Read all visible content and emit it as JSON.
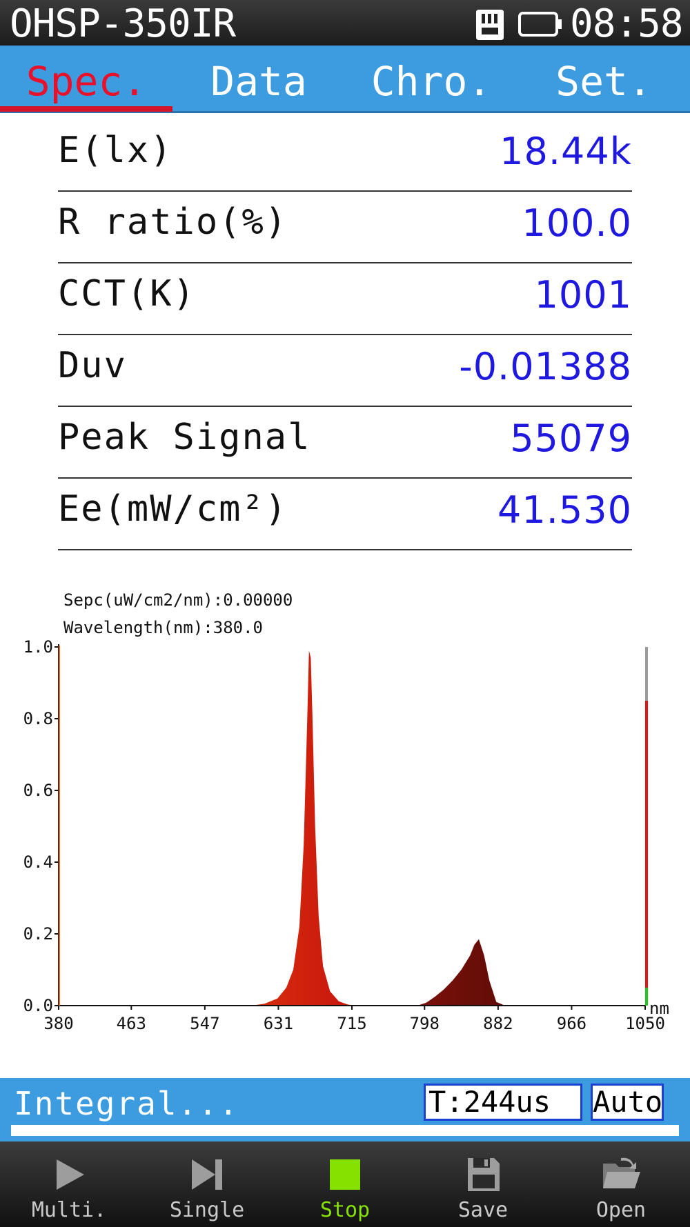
{
  "status_bar": {
    "model": "OHSP-350IR",
    "time": "08:58",
    "sd_icon": "sd-card-icon",
    "battery_icon": "battery-icon"
  },
  "tabs": [
    {
      "label": "Spec.",
      "active": true
    },
    {
      "label": "Data",
      "active": false
    },
    {
      "label": "Chro.",
      "active": false
    },
    {
      "label": "Set.",
      "active": false
    }
  ],
  "metrics": [
    {
      "label": "E(lx)",
      "value": "18.44k"
    },
    {
      "label": "R ratio(%)",
      "value": "100.0"
    },
    {
      "label": "CCT(K)",
      "value": "1001"
    },
    {
      "label": "Duv",
      "value": "-0.01388"
    },
    {
      "label": "Peak Signal",
      "value": "55079"
    },
    {
      "label": "Ee(mW/cm²)",
      "value": "41.530"
    }
  ],
  "cursor_readout": {
    "spec_line": "Sepc(uW/cm2/nm):0.00000",
    "wavelength_line": "Wavelength(nm):380.0"
  },
  "chart_data": {
    "type": "area",
    "xlabel": "nm",
    "ylabel": "",
    "xlim": [
      380,
      1050
    ],
    "ylim": [
      0,
      1.0
    ],
    "x_ticks": [
      "380",
      "463",
      "547",
      "631",
      "715",
      "798",
      "882",
      "966",
      "1050"
    ],
    "y_ticks": [
      "0.0",
      "0.2",
      "0.4",
      "0.6",
      "0.8",
      "1.0"
    ],
    "series": [
      {
        "x": [
          380,
          600,
          615,
          630,
          640,
          648,
          655,
          660,
          664,
          666,
          668,
          670,
          673,
          677,
          682,
          690,
          700,
          710,
          720,
          740
        ],
        "y": [
          0,
          0,
          0.005,
          0.02,
          0.05,
          0.1,
          0.22,
          0.45,
          0.8,
          0.99,
          0.97,
          0.8,
          0.5,
          0.25,
          0.11,
          0.04,
          0.012,
          0.003,
          0,
          0
        ]
      },
      {
        "x": [
          790,
          800,
          810,
          820,
          830,
          840,
          850,
          855,
          860,
          866,
          872,
          880,
          890,
          1050
        ],
        "y": [
          0,
          0.008,
          0.025,
          0.045,
          0.07,
          0.1,
          0.14,
          0.17,
          0.185,
          0.14,
          0.07,
          0.01,
          0,
          0
        ]
      }
    ],
    "grid": false,
    "signal_level_bar": {
      "level": 0.85,
      "colors": {
        "filled": "#e8141c",
        "empty": "#9a9a9a",
        "base": "#22c81e"
      }
    }
  },
  "integral": {
    "label": "Integral...",
    "time_value": "T:244us",
    "mode": "Auto",
    "progress": 1.0
  },
  "toolbar": [
    {
      "label": "Multi.",
      "icon": "play-icon",
      "active": false
    },
    {
      "label": "Single",
      "icon": "skip-next-icon",
      "active": false
    },
    {
      "label": "Stop",
      "icon": "stop-icon",
      "active": true
    },
    {
      "label": "Save",
      "icon": "floppy-disk-icon",
      "active": false
    },
    {
      "label": "Open",
      "icon": "folder-open-icon",
      "active": false
    }
  ],
  "colors": {
    "accent_blue": "#3d9be0",
    "active_tab": "#e8102a",
    "value_blue": "#1f18e0",
    "stop_green": "#86e000"
  }
}
